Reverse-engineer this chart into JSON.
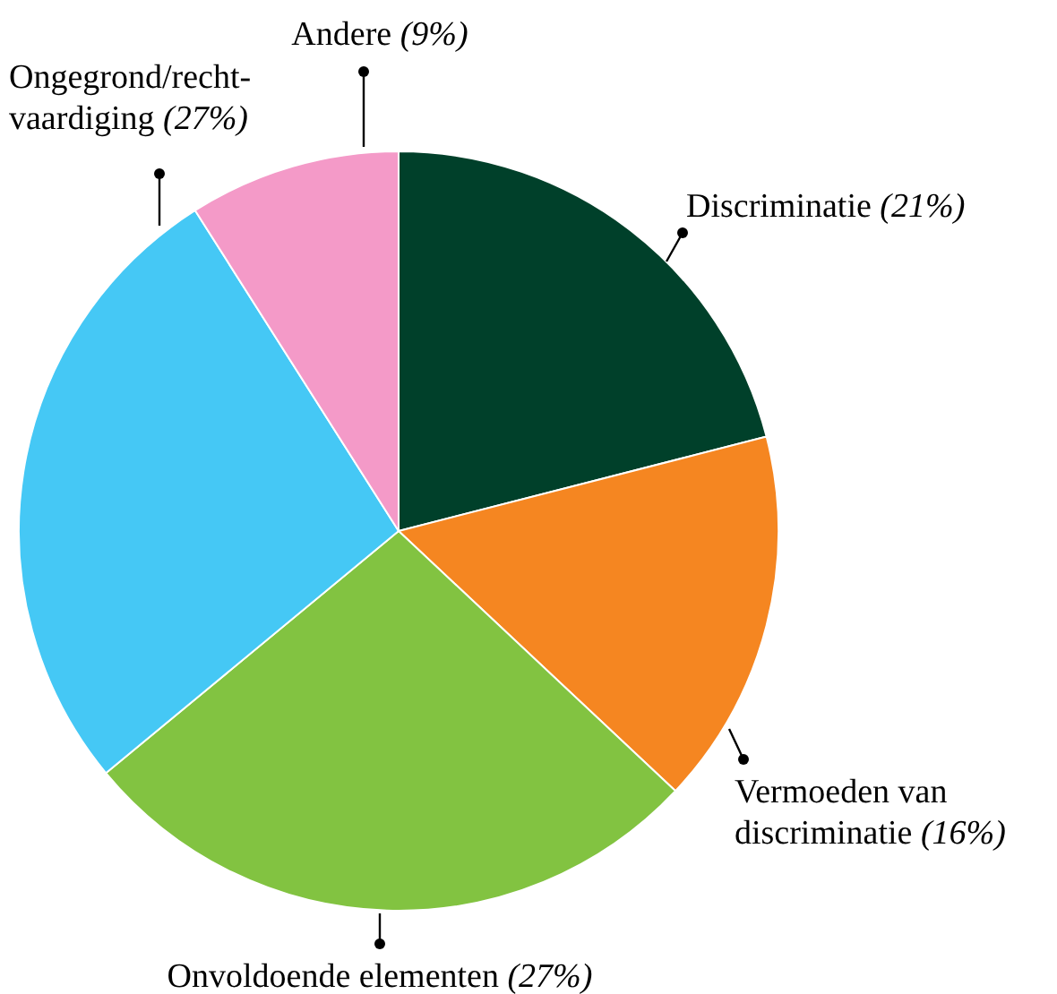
{
  "chart_data": {
    "type": "pie",
    "categories": [
      "Discriminatie",
      "Vermoeden van discriminatie",
      "Onvoldoende elementen",
      "Ongegrond/recht-vaardiging",
      "Andere"
    ],
    "values": [
      21,
      16,
      27,
      27,
      9
    ],
    "value_labels": [
      "(21%)",
      "(16%)",
      "(27%)",
      "(27%)",
      "(9%)"
    ],
    "colors": [
      "#00402a",
      "#f58621",
      "#82c341",
      "#45c8f5",
      "#f49ac8"
    ],
    "legend": false
  }
}
